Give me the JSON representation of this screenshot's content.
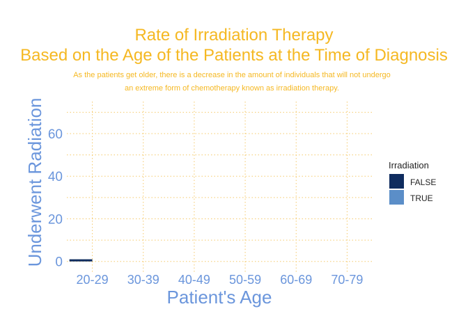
{
  "chart_data": {
    "type": "bar",
    "title_line1": "Rate of Irradiation Therapy",
    "title_line2": "Based on the Age of the Patients at the Time of Diagnosis",
    "subtitle_line1": "As the patients get older, there is a decrease in the amount of individuals that will not undergo",
    "subtitle_line2": "an extreme form of chemotherapy known as irradiation therapy.",
    "xlabel": "Patient's Age",
    "ylabel": "Underwent Radiation",
    "categories": [
      "20-29",
      "30-39",
      "40-49",
      "50-59",
      "60-69",
      "70-79"
    ],
    "yticks": [
      0,
      20,
      40,
      60
    ],
    "ylim": [
      -5,
      75
    ],
    "grid": true,
    "legend_position": "right",
    "legend_title": "Irradiation",
    "series": [
      {
        "name": "FALSE",
        "color": "#0f2c5f",
        "values": [
          1,
          0,
          0,
          0,
          0,
          0
        ]
      },
      {
        "name": "TRUE",
        "color": "#5b8ec8",
        "values": [
          0,
          0,
          0,
          0,
          0,
          0
        ]
      }
    ]
  },
  "colors": {
    "title": "#f5b822",
    "axis_text": "#6b96dc",
    "grid": "#f5c96a",
    "legend_text": "#222222"
  }
}
